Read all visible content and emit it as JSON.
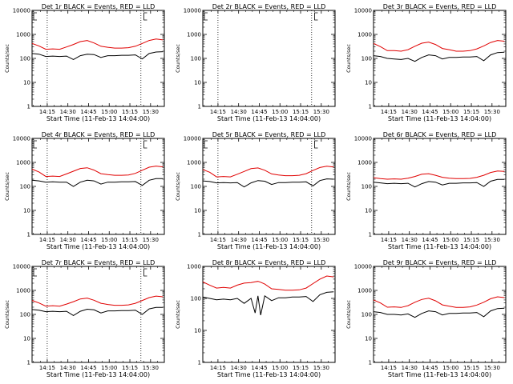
{
  "page": {
    "background": "#ffffff"
  },
  "style": {
    "events_color": "#000000",
    "lld_color": "#e00000",
    "axis_color": "#000000"
  },
  "chart_data": [
    {
      "type": "line",
      "title": "Det 1r BLACK = Events, RED = LLD",
      "xlabel": "Start Time (11-Feb-13 14:04:00)",
      "ylabel": "Counts/sec",
      "yscale": "log",
      "ylim": [
        1,
        10000
      ],
      "yticks": [
        "1",
        "10",
        "100",
        "1000",
        "10000"
      ],
      "xticks": [
        "14:15",
        "14:30",
        "14:45",
        "15:00",
        "15:15",
        "15:30"
      ],
      "xlim": [
        "14:04",
        "15:40"
      ],
      "vlines": [
        "14:15",
        "15:23"
      ],
      "markers": [
        "14:04",
        "15:24"
      ],
      "x": [
        "14:04",
        "14:09",
        "14:14",
        "14:19",
        "14:24",
        "14:29",
        "14:34",
        "14:39",
        "14:44",
        "14:49",
        "14:54",
        "14:59",
        "15:04",
        "15:09",
        "15:14",
        "15:19",
        "15:24",
        "15:29",
        "15:34",
        "15:39"
      ],
      "series": [
        {
          "name": "Events",
          "values": [
            160,
            150,
            120,
            125,
            120,
            125,
            90,
            130,
            150,
            145,
            110,
            130,
            130,
            135,
            135,
            140,
            95,
            160,
            185,
            190
          ]
        },
        {
          "name": "LLD",
          "values": [
            420,
            330,
            240,
            250,
            240,
            300,
            380,
            500,
            560,
            440,
            320,
            290,
            270,
            270,
            280,
            320,
            420,
            560,
            640,
            590
          ]
        }
      ]
    },
    {
      "type": "line",
      "title": "Det 2r BLACK = Events, RED = LLD",
      "xlabel": "Start Time (11-Feb-13 14:04:00)",
      "ylabel": "Counts/sec",
      "yscale": "log",
      "ylim": [
        1,
        10000
      ],
      "yticks": [
        "1",
        "10",
        "100",
        "1000",
        "10000"
      ],
      "xticks": [
        "14:15",
        "14:30",
        "14:45",
        "15:00",
        "15:15",
        "15:30"
      ],
      "xlim": [
        "14:04",
        "15:40"
      ],
      "vlines": [
        "14:15",
        "15:23"
      ],
      "markers": [
        "14:04",
        "15:24"
      ],
      "x": [],
      "series": [
        {
          "name": "Events",
          "values": []
        },
        {
          "name": "LLD",
          "values": []
        }
      ]
    },
    {
      "type": "line",
      "title": "Det 3r BLACK = Events, RED = LLD",
      "xlabel": "Start Time (11-Feb-13 14:04:00)",
      "ylabel": "Counts/sec",
      "yscale": "log",
      "ylim": [
        1,
        10000
      ],
      "yticks": [
        "1",
        "10",
        "100",
        "1000",
        "10000"
      ],
      "xticks": [
        "14:15",
        "14:30",
        "14:45",
        "15:00",
        "15:15",
        "15:30"
      ],
      "xlim": [
        "14:04",
        "15:40"
      ],
      "vlines": [],
      "markers": [],
      "x": [
        "14:04",
        "14:09",
        "14:14",
        "14:19",
        "14:24",
        "14:29",
        "14:34",
        "14:39",
        "14:44",
        "14:49",
        "14:54",
        "14:59",
        "15:04",
        "15:09",
        "15:14",
        "15:19",
        "15:24",
        "15:29",
        "15:34",
        "15:39"
      ],
      "series": [
        {
          "name": "Events",
          "values": [
            130,
            120,
            100,
            95,
            90,
            100,
            75,
            110,
            140,
            130,
            95,
            110,
            110,
            115,
            115,
            120,
            80,
            140,
            175,
            180
          ]
        },
        {
          "name": "LLD",
          "values": [
            420,
            310,
            210,
            210,
            200,
            230,
            320,
            430,
            480,
            380,
            260,
            230,
            200,
            200,
            210,
            250,
            330,
            460,
            560,
            520
          ]
        }
      ]
    },
    {
      "type": "line",
      "title": "Det 4r BLACK = Events, RED = LLD",
      "xlabel": "Start Time (11-Feb-13 14:04:00)",
      "ylabel": "Counts/sec",
      "yscale": "log",
      "ylim": [
        1,
        10000
      ],
      "yticks": [
        "1",
        "10",
        "100",
        "1000",
        "10000"
      ],
      "xticks": [
        "14:15",
        "14:30",
        "14:45",
        "15:00",
        "15:15",
        "15:30"
      ],
      "xlim": [
        "14:04",
        "15:40"
      ],
      "vlines": [
        "14:15",
        "15:23"
      ],
      "markers": [
        "14:04",
        "15:24"
      ],
      "x": [
        "14:04",
        "14:09",
        "14:14",
        "14:19",
        "14:24",
        "14:29",
        "14:34",
        "14:39",
        "14:44",
        "14:49",
        "14:54",
        "14:59",
        "15:04",
        "15:09",
        "15:14",
        "15:19",
        "15:24",
        "15:29",
        "15:34",
        "15:39"
      ],
      "series": [
        {
          "name": "Events",
          "values": [
            180,
            170,
            150,
            155,
            150,
            150,
            100,
            150,
            180,
            170,
            125,
            150,
            150,
            155,
            155,
            160,
            110,
            180,
            210,
            210
          ]
        },
        {
          "name": "LLD",
          "values": [
            520,
            400,
            260,
            270,
            260,
            330,
            430,
            560,
            600,
            480,
            340,
            310,
            290,
            290,
            300,
            350,
            470,
            630,
            700,
            650
          ]
        }
      ]
    },
    {
      "type": "line",
      "title": "Det 5r BLACK = Events, RED = LLD",
      "xlabel": "Start Time (11-Feb-13 14:04:00)",
      "ylabel": "Counts/sec",
      "yscale": "log",
      "ylim": [
        1,
        10000
      ],
      "yticks": [
        "1",
        "10",
        "100",
        "1000",
        "10000"
      ],
      "xticks": [
        "14:15",
        "14:30",
        "14:45",
        "15:00",
        "15:15",
        "15:30"
      ],
      "xlim": [
        "14:04",
        "15:40"
      ],
      "vlines": [
        "14:15",
        "15:23"
      ],
      "markers": [
        "14:04",
        "15:24"
      ],
      "x": [
        "14:04",
        "14:09",
        "14:14",
        "14:19",
        "14:24",
        "14:29",
        "14:34",
        "14:39",
        "14:44",
        "14:49",
        "14:54",
        "14:59",
        "15:04",
        "15:09",
        "15:14",
        "15:19",
        "15:24",
        "15:29",
        "15:34",
        "15:39"
      ],
      "series": [
        {
          "name": "Events",
          "values": [
            170,
            160,
            140,
            145,
            140,
            145,
            95,
            140,
            175,
            165,
            120,
            145,
            145,
            150,
            150,
            155,
            105,
            175,
            205,
            200
          ]
        },
        {
          "name": "LLD",
          "values": [
            500,
            390,
            250,
            260,
            250,
            320,
            420,
            550,
            590,
            470,
            330,
            300,
            280,
            280,
            290,
            340,
            460,
            610,
            690,
            640
          ]
        }
      ]
    },
    {
      "type": "line",
      "title": "Det 6r BLACK = Events, RED = LLD",
      "xlabel": "Start Time (11-Feb-13 14:04:00)",
      "ylabel": "Counts/sec",
      "yscale": "log",
      "ylim": [
        1,
        10000
      ],
      "yticks": [
        "1",
        "10",
        "100",
        "1000",
        "10000"
      ],
      "xticks": [
        "14:15",
        "14:30",
        "14:45",
        "15:00",
        "15:15",
        "15:30"
      ],
      "xlim": [
        "14:04",
        "15:40"
      ],
      "vlines": [],
      "markers": [],
      "x": [
        "14:04",
        "14:09",
        "14:14",
        "14:19",
        "14:24",
        "14:29",
        "14:34",
        "14:39",
        "14:44",
        "14:49",
        "14:54",
        "14:59",
        "15:04",
        "15:09",
        "15:14",
        "15:19",
        "15:24",
        "15:29",
        "15:34",
        "15:39"
      ],
      "series": [
        {
          "name": "Events",
          "values": [
            150,
            140,
            130,
            135,
            130,
            135,
            95,
            130,
            160,
            150,
            115,
            135,
            135,
            140,
            140,
            145,
            100,
            165,
            195,
            195
          ]
        },
        {
          "name": "LLD",
          "values": [
            230,
            210,
            200,
            205,
            200,
            220,
            260,
            320,
            340,
            290,
            240,
            220,
            210,
            210,
            215,
            240,
            290,
            380,
            440,
            420
          ]
        }
      ]
    },
    {
      "type": "line",
      "title": "Det 7r BLACK = Events, RED = LLD",
      "xlabel": "Start Time (11-Feb-13 14:04:00)",
      "ylabel": "Counts/sec",
      "yscale": "log",
      "ylim": [
        1,
        10000
      ],
      "yticks": [
        "1",
        "10",
        "100",
        "1000",
        "10000"
      ],
      "xticks": [
        "14:15",
        "14:30",
        "14:45",
        "15:00",
        "15:15",
        "15:30"
      ],
      "xlim": [
        "14:04",
        "15:40"
      ],
      "vlines": [
        "14:15",
        "15:23"
      ],
      "markers": [
        "14:04",
        "15:24"
      ],
      "x": [
        "14:04",
        "14:09",
        "14:14",
        "14:19",
        "14:24",
        "14:29",
        "14:34",
        "14:39",
        "14:44",
        "14:49",
        "14:54",
        "14:59",
        "15:04",
        "15:09",
        "15:14",
        "15:19",
        "15:24",
        "15:29",
        "15:34",
        "15:39"
      ],
      "series": [
        {
          "name": "Events",
          "values": [
            160,
            150,
            130,
            135,
            130,
            135,
            90,
            135,
            165,
            155,
            115,
            140,
            140,
            145,
            145,
            150,
            100,
            170,
            195,
            195
          ]
        },
        {
          "name": "LLD",
          "values": [
            380,
            300,
            220,
            230,
            220,
            270,
            340,
            440,
            480,
            390,
            290,
            260,
            240,
            240,
            250,
            290,
            380,
            500,
            580,
            540
          ]
        }
      ]
    },
    {
      "type": "line",
      "title": "Det 8r BLACK = Events, RED = LLD",
      "xlabel": "Start Time (11-Feb-13 14:04:00)",
      "ylabel": "Counts/sec",
      "yscale": "log",
      "ylim": [
        1,
        1000
      ],
      "yticks": [
        "1",
        "10",
        "100",
        "1000"
      ],
      "xticks": [
        "14:15",
        "14:30",
        "14:45",
        "15:00",
        "15:15",
        "15:30"
      ],
      "xlim": [
        "14:04",
        "15:40"
      ],
      "vlines": [],
      "markers": [],
      "x": [
        "14:04",
        "14:09",
        "14:14",
        "14:19",
        "14:24",
        "14:29",
        "14:34",
        "14:39",
        "14:42",
        "14:44",
        "14:46",
        "14:49",
        "14:54",
        "14:59",
        "15:04",
        "15:09",
        "15:14",
        "15:19",
        "15:24",
        "15:29",
        "15:34",
        "15:39"
      ],
      "series": [
        {
          "name": "Events",
          "values": [
            110,
            100,
            90,
            95,
            90,
            100,
            70,
            100,
            35,
            120,
            30,
            120,
            85,
            105,
            105,
            110,
            110,
            115,
            80,
            130,
            155,
            160
          ]
        },
        {
          "name": "LLD",
          "values": [
            330,
            260,
            210,
            220,
            210,
            260,
            300,
            310,
            330,
            340,
            320,
            280,
            200,
            190,
            180,
            180,
            185,
            210,
            290,
            400,
            500,
            470
          ]
        }
      ]
    },
    {
      "type": "line",
      "title": "Det 9r BLACK = Events, RED = LLD",
      "xlabel": "Start Time (11-Feb-13 14:04:00)",
      "ylabel": "Counts/sec",
      "yscale": "log",
      "ylim": [
        1,
        10000
      ],
      "yticks": [
        "1",
        "10",
        "100",
        "1000",
        "10000"
      ],
      "xticks": [
        "14:15",
        "14:30",
        "14:45",
        "15:00",
        "15:15",
        "15:30"
      ],
      "xlim": [
        "14:04",
        "15:40"
      ],
      "vlines": [],
      "markers": [],
      "x": [
        "14:04",
        "14:09",
        "14:14",
        "14:19",
        "14:24",
        "14:29",
        "14:34",
        "14:39",
        "14:44",
        "14:49",
        "14:54",
        "14:59",
        "15:04",
        "15:09",
        "15:14",
        "15:19",
        "15:24",
        "15:29",
        "15:34",
        "15:39"
      ],
      "series": [
        {
          "name": "Events",
          "values": [
            130,
            120,
            100,
            100,
            95,
            105,
            75,
            110,
            140,
            130,
            95,
            110,
            110,
            115,
            115,
            120,
            80,
            140,
            175,
            180
          ]
        },
        {
          "name": "LLD",
          "values": [
            400,
            300,
            200,
            205,
            195,
            230,
            320,
            420,
            470,
            370,
            250,
            220,
            195,
            195,
            205,
            245,
            320,
            450,
            540,
            500
          ]
        }
      ]
    }
  ]
}
